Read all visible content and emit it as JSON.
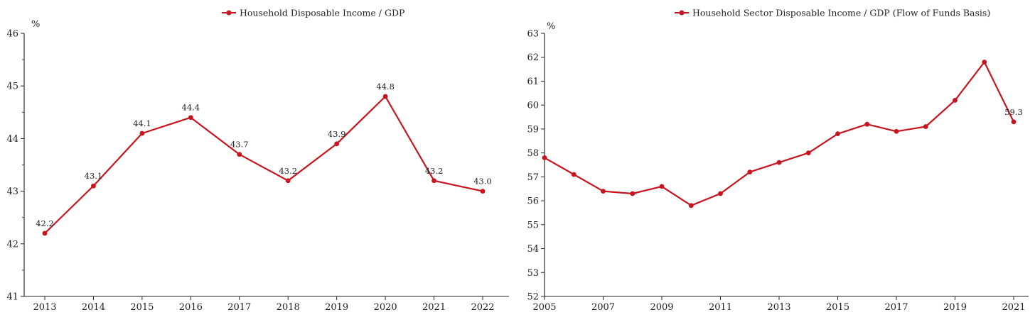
{
  "colors": {
    "series": "#c8141e",
    "axis": "#222222",
    "background": "#ffffff"
  },
  "chart_data": [
    {
      "type": "line",
      "title": "",
      "xlabel": "",
      "ylabel": "%",
      "legend": {
        "label": "Household Disposable Income / GDP",
        "placement": "top-center"
      },
      "series": [
        {
          "name": "Household Disposable Income / GDP",
          "x": [
            2013,
            2014,
            2015,
            2016,
            2017,
            2018,
            2019,
            2020,
            2021,
            2022
          ],
          "values": [
            42.2,
            43.1,
            44.1,
            44.4,
            43.7,
            43.2,
            43.9,
            44.8,
            43.2,
            43.0
          ],
          "labels": [
            "42.2",
            "43.1",
            "44.1",
            "44.4",
            "43.7",
            "43.2",
            "43.9",
            "44.8",
            "43.2",
            "43.0"
          ]
        }
      ],
      "xticks": [
        2013,
        2014,
        2015,
        2016,
        2017,
        2018,
        2019,
        2020,
        2021,
        2022
      ],
      "xtick_labels": [
        "2013",
        "2014",
        "2015",
        "2016",
        "2017",
        "2018",
        "2019",
        "2020",
        "2021",
        "2022"
      ],
      "yticks": [
        41,
        42,
        43,
        44,
        45,
        46
      ],
      "ytick_labels": [
        "41",
        "42",
        "43",
        "44",
        "45",
        "46"
      ],
      "minor_yticks": [
        41.5,
        42.5,
        43.5,
        44.5,
        45.5
      ],
      "xlim": [
        2012.55,
        2022.55
      ],
      "ylim": [
        41,
        46
      ],
      "grid": false
    },
    {
      "type": "line",
      "title": "",
      "xlabel": "",
      "ylabel": "%",
      "legend": {
        "label": "Household Sector Disposable Income / GDP (Flow of Funds Basis)",
        "placement": "top-center"
      },
      "series": [
        {
          "name": "Household Sector Disposable Income / GDP (Flow of Funds Basis)",
          "x": [
            2005,
            2006,
            2007,
            2008,
            2009,
            2010,
            2011,
            2012,
            2013,
            2014,
            2015,
            2016,
            2017,
            2018,
            2019,
            2020,
            2021
          ],
          "values": [
            57.8,
            57.1,
            56.4,
            56.3,
            56.6,
            55.8,
            56.3,
            57.2,
            57.6,
            58.0,
            58.8,
            59.2,
            58.9,
            59.1,
            60.2,
            61.8,
            59.3
          ],
          "labels": [
            "",
            "",
            "",
            "",
            "",
            "",
            "",
            "",
            "",
            "",
            "",
            "",
            "",
            "",
            "",
            "",
            "59.3"
          ]
        }
      ],
      "xticks": [
        2005,
        2007,
        2009,
        2011,
        2013,
        2015,
        2017,
        2019,
        2021
      ],
      "xtick_labels": [
        "2005",
        "2007",
        "2009",
        "2011",
        "2013",
        "2015",
        "2017",
        "2019",
        "2021"
      ],
      "yticks": [
        52,
        53,
        54,
        55,
        56,
        57,
        58,
        59,
        60,
        61,
        62,
        63
      ],
      "ytick_labels": [
        "52",
        "53",
        "54",
        "55",
        "56",
        "57",
        "58",
        "59",
        "60",
        "61",
        "62",
        "63"
      ],
      "minor_yticks": [],
      "xlim": [
        2005,
        2021
      ],
      "ylim": [
        52,
        63
      ],
      "grid": false
    }
  ]
}
